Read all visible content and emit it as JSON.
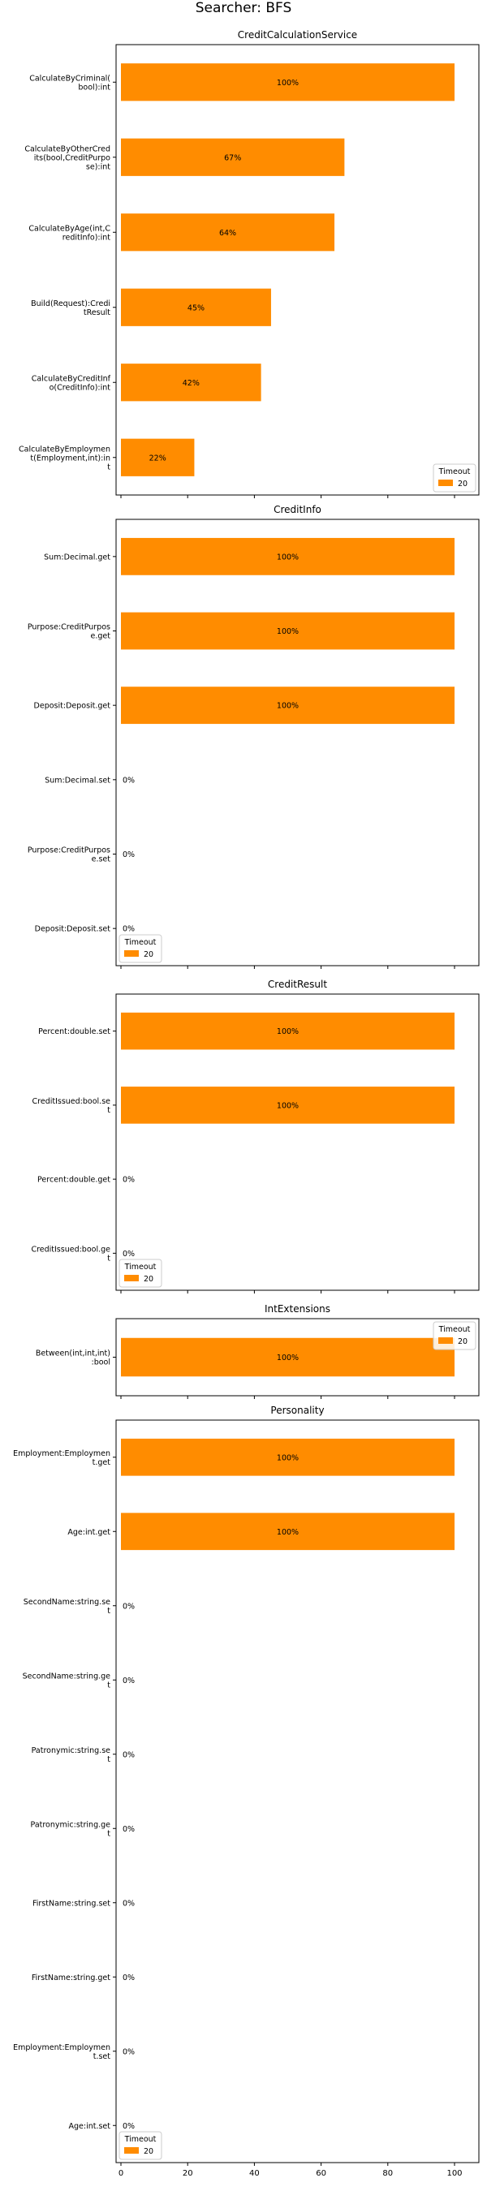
{
  "figure": {
    "suptitle": "Searcher: BFS",
    "bar_color": "#ff8c00",
    "legend_title": "Timeout",
    "legend_label": "20",
    "x_ticks": [
      "0",
      "20",
      "40",
      "60",
      "80",
      "100"
    ]
  },
  "chart_data": [
    {
      "type": "bar",
      "orientation": "horizontal",
      "title": "CreditCalculationService",
      "categories": [
        "CalculateByCriminal(\nbool):int",
        "CalculateByOtherCred\nits(bool,CreditPurpo\nse):int",
        "CalculateByAge(int,C\nreditInfo):int",
        "Build(Request):Credi\ntResult",
        "CalculateByCreditInf\no(CreditInfo):int",
        "CalculateByEmploymen\nt(Employment,int):in\nt"
      ],
      "series": [
        {
          "name": "20",
          "values": [
            100,
            67,
            64,
            45,
            42,
            22
          ]
        }
      ],
      "labels": [
        "100%",
        "67%",
        "64%",
        "45%",
        "42%",
        "22%"
      ],
      "xlim": [
        0,
        100
      ],
      "legend": {
        "title": "Timeout",
        "placement": "lower-right"
      },
      "grid": false
    },
    {
      "type": "bar",
      "orientation": "horizontal",
      "title": "CreditInfo",
      "categories": [
        "Sum:Decimal.get",
        "Purpose:CreditPurpos\ne.get",
        "Deposit:Deposit.get",
        "Sum:Decimal.set",
        "Purpose:CreditPurpos\ne.set",
        "Deposit:Deposit.set"
      ],
      "series": [
        {
          "name": "20",
          "values": [
            100,
            100,
            100,
            0,
            0,
            0
          ]
        }
      ],
      "labels": [
        "100%",
        "100%",
        "100%",
        "0%",
        "0%",
        "0%"
      ],
      "xlim": [
        0,
        100
      ],
      "legend": {
        "title": "Timeout",
        "placement": "lower-left"
      },
      "grid": false
    },
    {
      "type": "bar",
      "orientation": "horizontal",
      "title": "CreditResult",
      "categories": [
        "Percent:double.set",
        "CreditIssued:bool.se\nt",
        "Percent:double.get",
        "CreditIssued:bool.ge\nt"
      ],
      "series": [
        {
          "name": "20",
          "values": [
            100,
            100,
            0,
            0
          ]
        }
      ],
      "labels": [
        "100%",
        "100%",
        "0%",
        "0%"
      ],
      "xlim": [
        0,
        100
      ],
      "legend": {
        "title": "Timeout",
        "placement": "lower-left"
      },
      "grid": false
    },
    {
      "type": "bar",
      "orientation": "horizontal",
      "title": "IntExtensions",
      "categories": [
        "Between(int,int,int)\n:bool"
      ],
      "series": [
        {
          "name": "20",
          "values": [
            100
          ]
        }
      ],
      "labels": [
        "100%"
      ],
      "xlim": [
        0,
        100
      ],
      "legend": {
        "title": "Timeout",
        "placement": "upper-right"
      },
      "grid": false
    },
    {
      "type": "bar",
      "orientation": "horizontal",
      "title": "Personality",
      "categories": [
        "Employment:Employmen\nt.get",
        "Age:int.get",
        "SecondName:string.se\nt",
        "SecondName:string.ge\nt",
        "Patronymic:string.se\nt",
        "Patronymic:string.ge\nt",
        "FirstName:string.set",
        "FirstName:string.get",
        "Employment:Employmen\nt.set",
        "Age:int.set"
      ],
      "series": [
        {
          "name": "20",
          "values": [
            100,
            100,
            0,
            0,
            0,
            0,
            0,
            0,
            0,
            0
          ]
        }
      ],
      "labels": [
        "100%",
        "100%",
        "0%",
        "0%",
        "0%",
        "0%",
        "0%",
        "0%",
        "0%",
        "0%"
      ],
      "xlim": [
        0,
        100
      ],
      "xticks": [
        0,
        20,
        40,
        60,
        80,
        100
      ],
      "legend": {
        "title": "Timeout",
        "placement": "lower-left"
      },
      "grid": false
    }
  ]
}
